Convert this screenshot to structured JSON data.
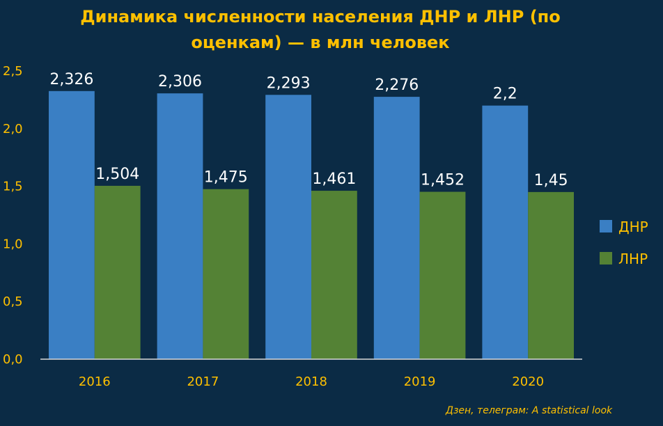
{
  "chart_data": {
    "type": "bar",
    "title": "Динамика численности населения ДНР и ЛНР (по оценкам) — в млн человек",
    "categories": [
      "2016",
      "2017",
      "2018",
      "2019",
      "2020"
    ],
    "series": [
      {
        "name": "ДНР",
        "color": "#3a7fc4",
        "values": [
          2.326,
          2.306,
          2.293,
          2.276,
          2.2
        ],
        "labels": [
          "2,326",
          "2,306",
          "2,293",
          "2,276",
          "2,2"
        ]
      },
      {
        "name": "ЛНР",
        "color": "#548235",
        "values": [
          1.504,
          1.475,
          1.461,
          1.452,
          1.45
        ],
        "labels": [
          "1,504",
          "1,475",
          "1,461",
          "1,452",
          "1,45"
        ]
      }
    ],
    "ylim": [
      0,
      2.5
    ],
    "yticks": [
      0,
      0.5,
      1.0,
      1.5,
      2.0,
      2.5
    ],
    "ytick_labels": [
      "0,0",
      "0,5",
      "1,0",
      "1,5",
      "2,0",
      "2,5"
    ],
    "grid": false,
    "legend": "right"
  },
  "credit": "Дзен, телеграм: A statistical look"
}
